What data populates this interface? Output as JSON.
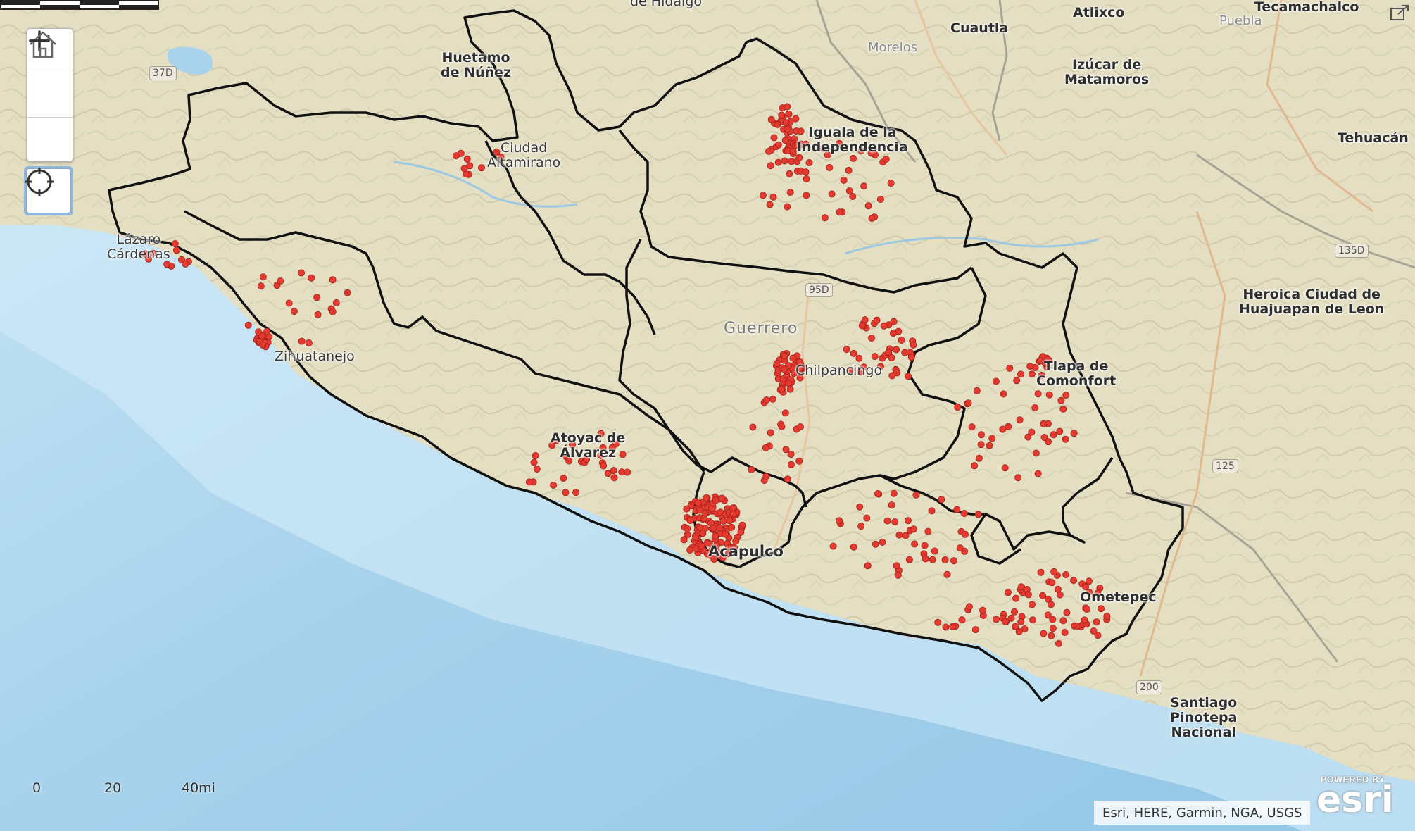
{
  "map": {
    "controls": {
      "zoom_in_icon": "plus-icon",
      "home_icon": "home-icon",
      "zoom_out_icon": "minus-icon",
      "locate_icon": "locate-crosshair-icon"
    },
    "colors": {
      "land": "#e6e2c8",
      "water": "#a9d3ec",
      "boundary": "#111111",
      "points": "#e53a30"
    },
    "labels": {
      "de_hidalgo": "de Hidalgo",
      "atlixco": "Atlixco",
      "tecamachalco": "Tecamachalco",
      "puebla": "Puebla",
      "cuautla": "Cuautla",
      "morelos": "Morelos",
      "izucar": "Izúcar de\nMatamoros",
      "tehuacan": "Tehuacán",
      "huetamo": "Huetamo\nde Núñez",
      "ciudad_altamirano": "Ciudad\nAltamirano",
      "iguala": "Iguala de la\nIndependencia",
      "lazaro": "Lázaro\nCárdenas",
      "zihuatanejo": "Zihuatanejo",
      "guerrero": "Guerrero",
      "chilpancingo": "Chilpancingo",
      "tlapa": "Tlapa de\nComonfort",
      "huajuapan": "Heroica Ciudad de\nHuajuapan de Leon",
      "atoyac": "Atoyac de\nÁlvarez",
      "acapulco": "Acapulco",
      "ometepec": "Ometepec",
      "pinotepa": "Santiago\nPinotepa\nNacional"
    },
    "shields": {
      "s37d": "37D",
      "s95d": "95D",
      "s135d": "135D",
      "s125": "125",
      "s200": "200"
    },
    "scale": {
      "zero": "0",
      "twenty": "20",
      "forty": "40mi"
    },
    "attribution": "Esri, HERE, Garmin, NGA, USGS",
    "esri": {
      "powered_by": "POWERED BY",
      "logo_text": "esri"
    }
  }
}
